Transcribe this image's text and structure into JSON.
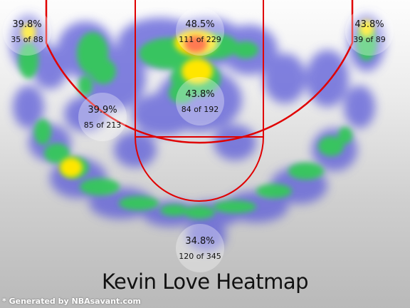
{
  "chart_data": {
    "type": "heatmap",
    "title": "Kevin Love Heatmap",
    "footer": "* Generated by NBAsavant.com",
    "zones": [
      {
        "name": "left-corner-three",
        "pct": "39.8%",
        "made_of": "35 of 88"
      },
      {
        "name": "paint-restricted",
        "pct": "48.5%",
        "made_of": "111 of 229"
      },
      {
        "name": "right-corner-three",
        "pct": "43.8%",
        "made_of": "39 of 89"
      },
      {
        "name": "left-midrange",
        "pct": "39.9%",
        "made_of": "85 of 213"
      },
      {
        "name": "paint-non-restricted",
        "pct": "43.8%",
        "made_of": "84 of 192"
      },
      {
        "name": "above-break-three",
        "pct": "34.8%",
        "made_of": "120 of 345"
      }
    ],
    "colors": {
      "court_lines": "#e00000",
      "cool": "#5a5ad8",
      "warm": "#ffe600",
      "hot": "#ff3b00",
      "mid": "#36c85a"
    }
  }
}
